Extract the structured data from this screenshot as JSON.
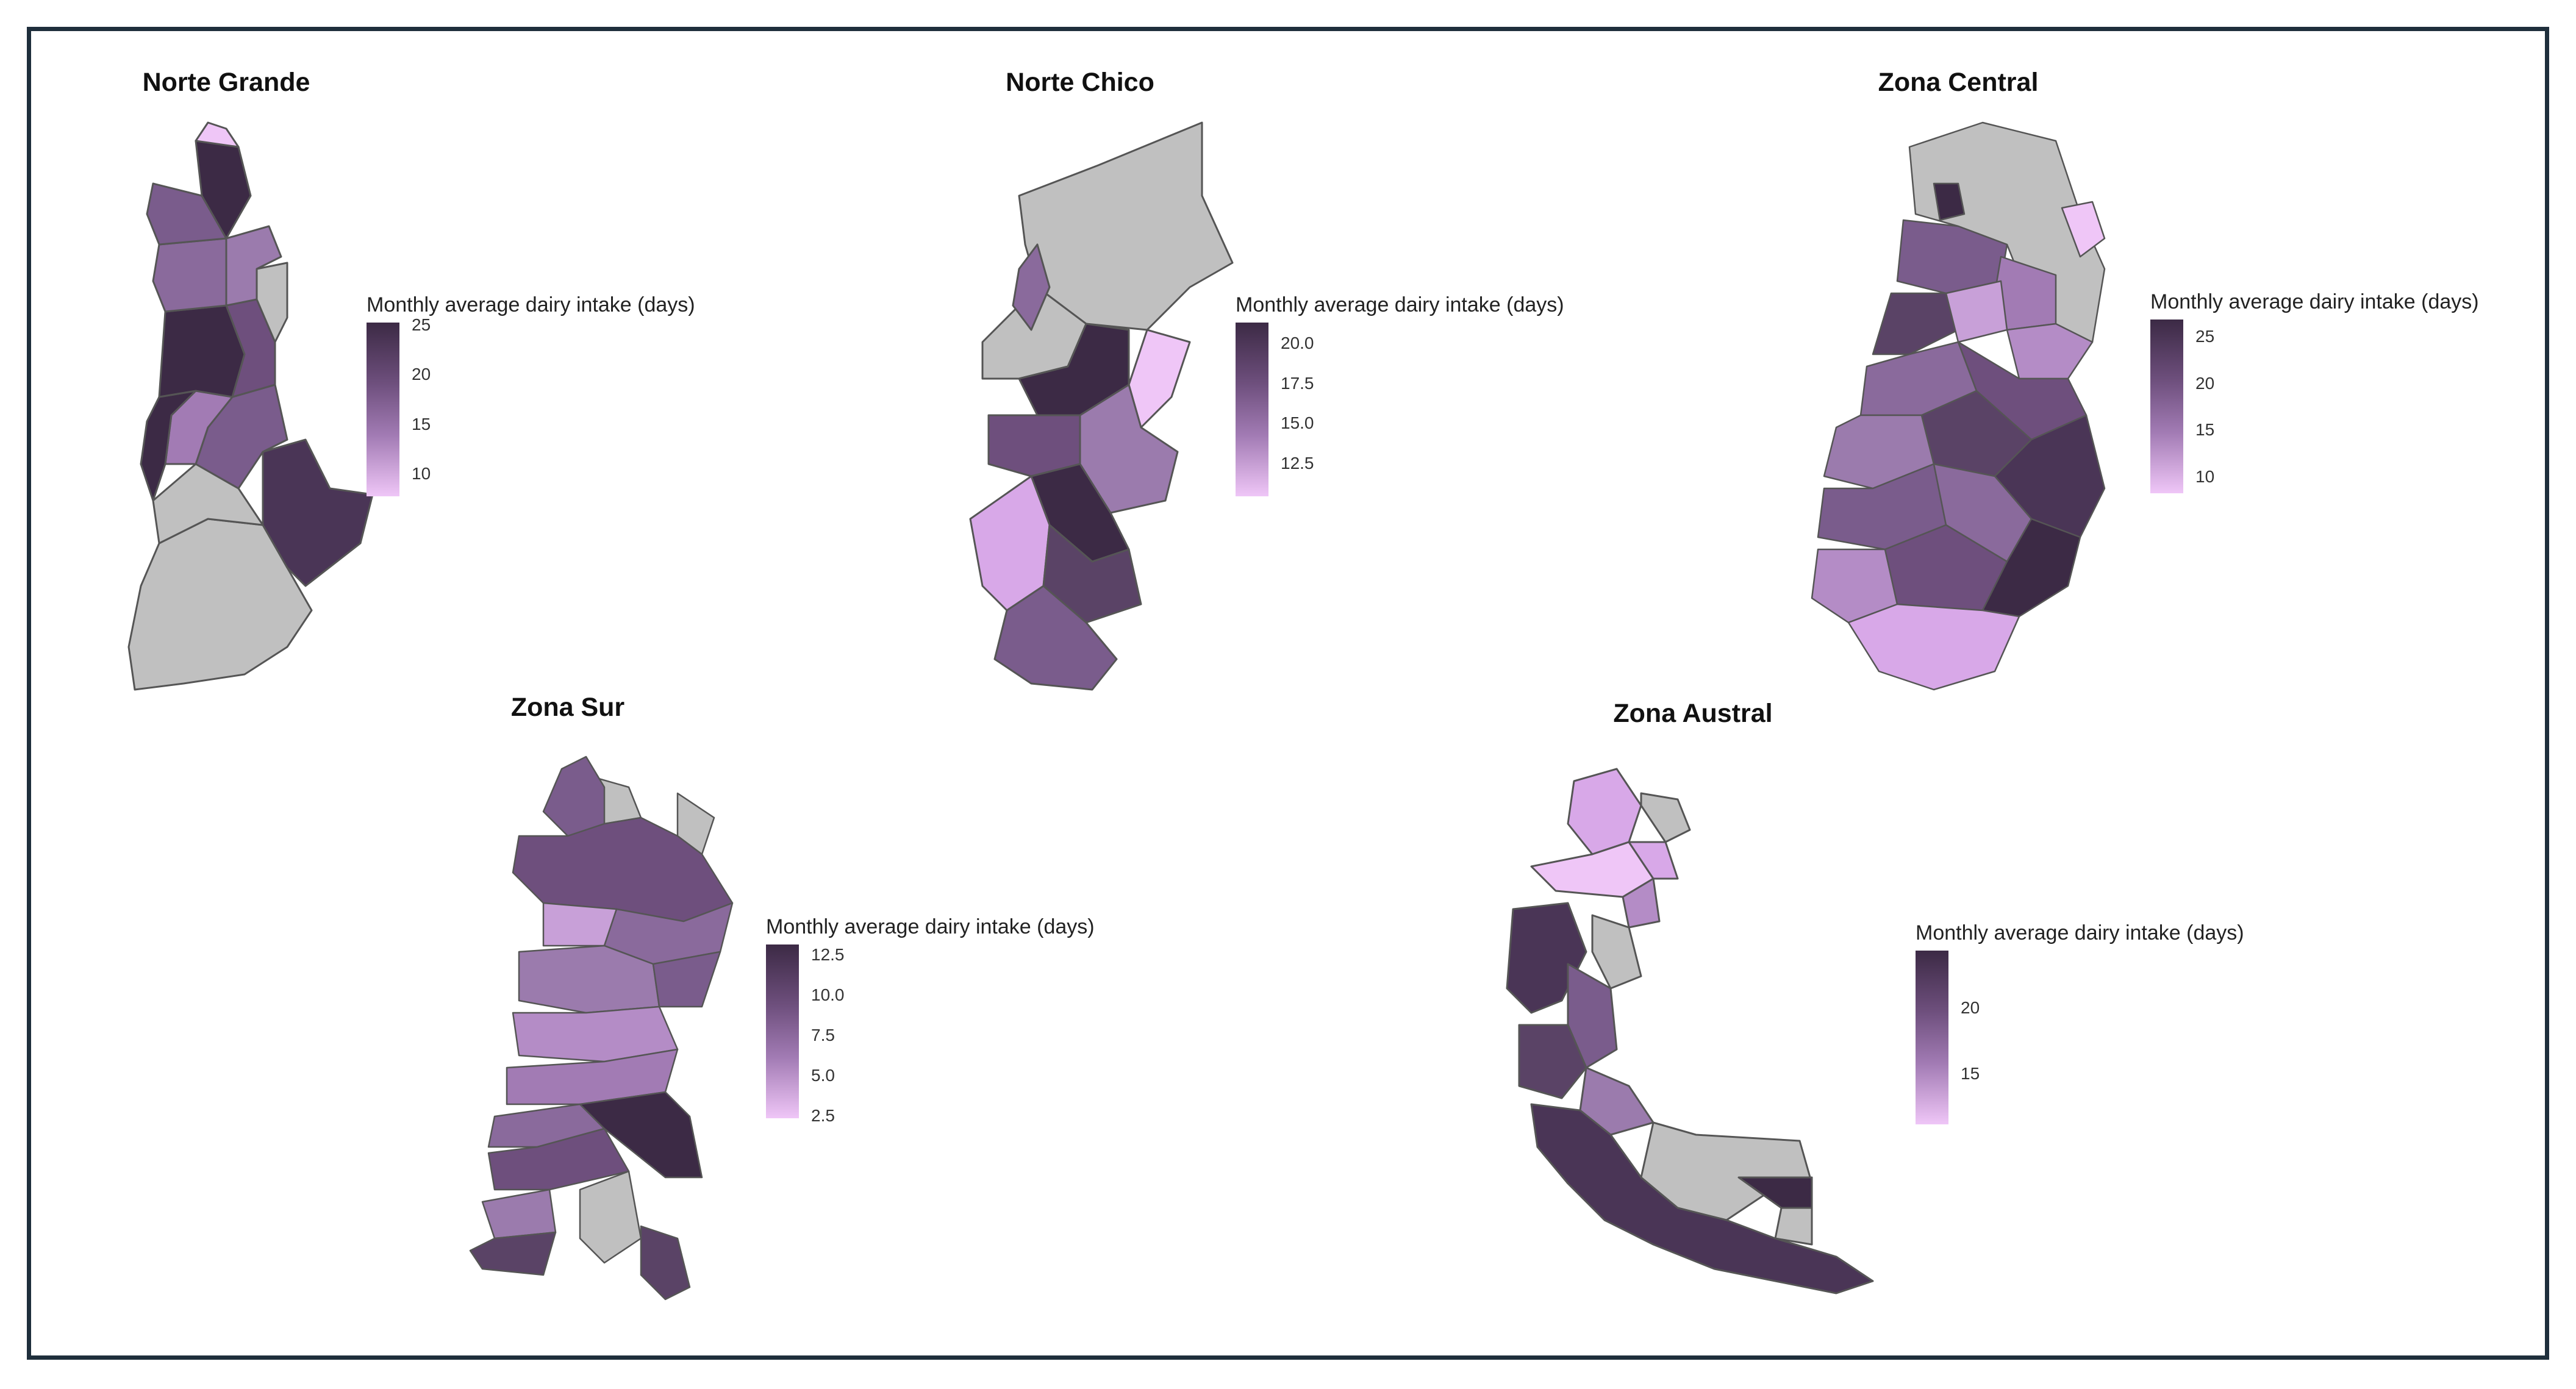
{
  "colors": {
    "no_data": "#c0c0c0",
    "border": "#555555",
    "scale_high": "#3c2a45",
    "scale_low": "#efc6f7",
    "frame": "#1f2f3c"
  },
  "panels": [
    {
      "id": "norte-grande",
      "title": "Norte Grande",
      "legend_title": "Monthly average dairy intake (days)",
      "legend_ticks": [
        "25",
        "20",
        "15",
        "10"
      ]
    },
    {
      "id": "norte-chico",
      "title": "Norte Chico",
      "legend_title": "Monthly average dairy intake (days)",
      "legend_ticks": [
        "20.0",
        "17.5",
        "15.0",
        "12.5"
      ]
    },
    {
      "id": "zona-central",
      "title": "Zona Central",
      "legend_title": "Monthly average dairy intake (days)",
      "legend_ticks": [
        "25",
        "20",
        "15",
        "10"
      ]
    },
    {
      "id": "zona-sur",
      "title": "Zona Sur",
      "legend_title": "Monthly average dairy intake (days)",
      "legend_ticks": [
        "12.5",
        "10.0",
        "7.5",
        "5.0",
        "2.5"
      ]
    },
    {
      "id": "zona-austral",
      "title": "Zona Austral",
      "legend_title": "Monthly average dairy intake (days)",
      "legend_ticks": [
        "20",
        "15"
      ]
    }
  ]
}
